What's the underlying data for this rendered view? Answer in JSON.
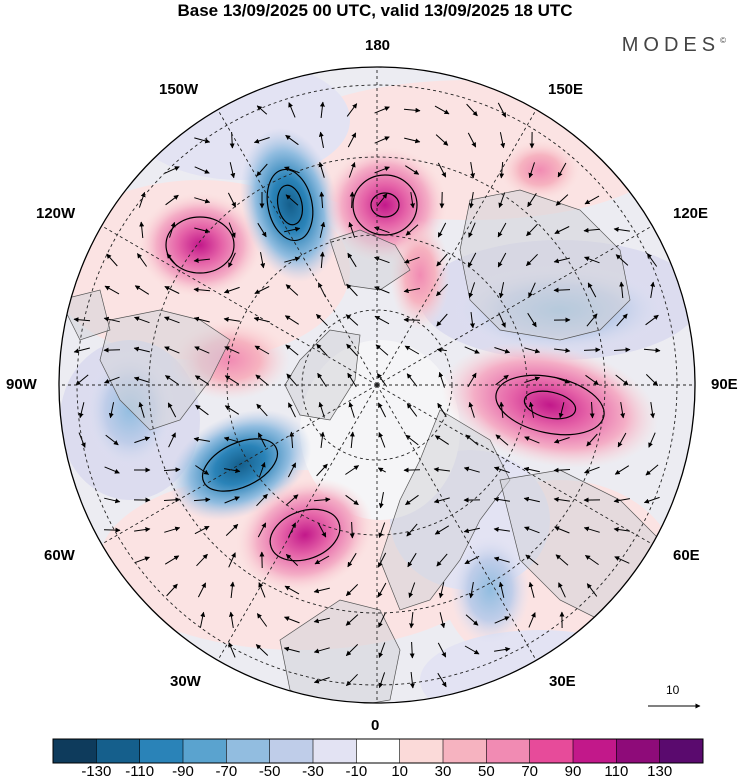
{
  "title": "Base 13/09/2025 00 UTC, valid 13/09/2025 18 UTC",
  "brand": {
    "name": "MODES",
    "mark": "©"
  },
  "longitude_labels": {
    "top": "180",
    "bottom": "0",
    "left": "90W",
    "right": "90E",
    "upper_left": "150W",
    "upper_right": "150E",
    "mid_upper_left": "120W",
    "mid_upper_right": "120E",
    "mid_lower_left": "60W",
    "mid_lower_right": "60E",
    "lower_left": "30W",
    "lower_right": "30E"
  },
  "vector_reference": {
    "label": "10"
  },
  "colorbar": {
    "labels": [
      "-130",
      "-110",
      "-90",
      "-70",
      "-50",
      "-30",
      "-10",
      "10",
      "30",
      "50",
      "70",
      "90",
      "110",
      "130"
    ],
    "colors": [
      "#0e3b5c",
      "#155f8c",
      "#2a83b8",
      "#5aa3cf",
      "#92bde0",
      "#bfcde9",
      "#e3e3f3",
      "#ffffff",
      "#fbdad9",
      "#f6b3c0",
      "#f18bb3",
      "#e74b9a",
      "#c2188a",
      "#8e0b79",
      "#5a0a6e"
    ]
  },
  "palette": {
    "land": "#dcdcdc",
    "positive_strong": "#e563a8",
    "negative_strong": "#2a7ab0"
  }
}
